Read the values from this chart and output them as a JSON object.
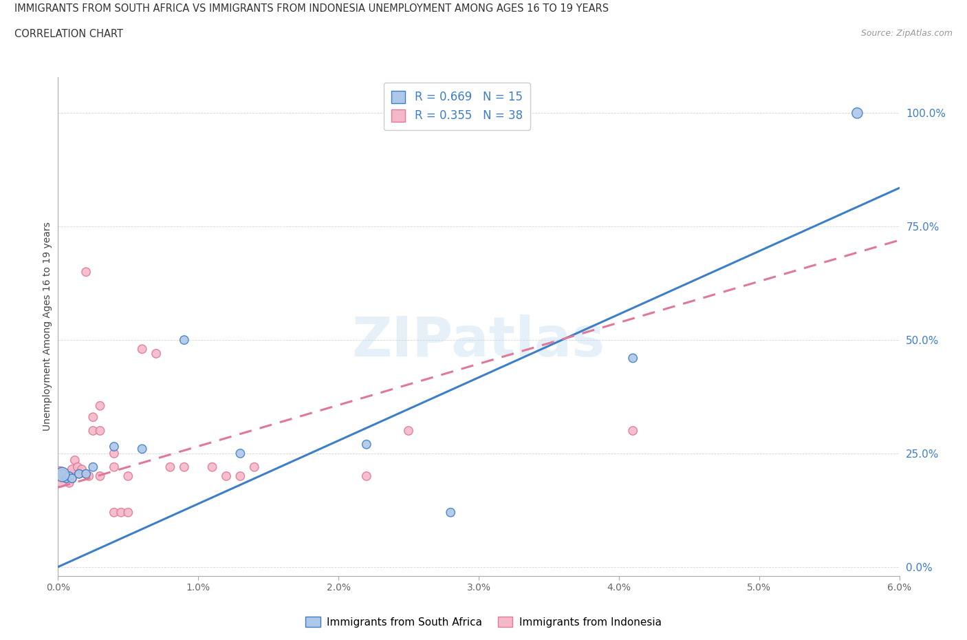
{
  "title_line1": "IMMIGRANTS FROM SOUTH AFRICA VS IMMIGRANTS FROM INDONESIA UNEMPLOYMENT AMONG AGES 16 TO 19 YEARS",
  "title_line2": "CORRELATION CHART",
  "source": "Source: ZipAtlas.com",
  "ylabel": "Unemployment Among Ages 16 to 19 years",
  "xlim": [
    0.0,
    0.06
  ],
  "ylim": [
    -0.02,
    1.08
  ],
  "xticks": [
    0.0,
    0.01,
    0.02,
    0.03,
    0.04,
    0.05,
    0.06
  ],
  "xticklabels": [
    "0.0%",
    "1.0%",
    "2.0%",
    "3.0%",
    "4.0%",
    "5.0%",
    "6.0%"
  ],
  "yticks": [
    0.0,
    0.25,
    0.5,
    0.75,
    1.0
  ],
  "yticklabels": [
    "0.0%",
    "25.0%",
    "50.0%",
    "75.0%",
    "100.0%"
  ],
  "legend_labels": [
    "Immigrants from South Africa",
    "Immigrants from Indonesia"
  ],
  "R_blue": 0.669,
  "N_blue": 15,
  "R_pink": 0.355,
  "N_pink": 38,
  "color_blue": "#adc8e8",
  "color_pink": "#f5b8c8",
  "color_line_blue": "#3d7ec8",
  "color_line_pink": "#e07898",
  "watermark": "ZIPatlas",
  "blue_line_x0": 0.0,
  "blue_line_y0": 0.0,
  "blue_line_x1": 0.06,
  "blue_line_y1": 0.835,
  "pink_line_x0": 0.0,
  "pink_line_y0": 0.175,
  "pink_line_x1": 0.06,
  "pink_line_y1": 0.72,
  "blue_points": [
    [
      0.0003,
      0.205
    ],
    [
      0.0006,
      0.195
    ],
    [
      0.0008,
      0.2
    ],
    [
      0.001,
      0.195
    ],
    [
      0.0015,
      0.205
    ],
    [
      0.002,
      0.205
    ],
    [
      0.0025,
      0.22
    ],
    [
      0.004,
      0.265
    ],
    [
      0.006,
      0.26
    ],
    [
      0.009,
      0.5
    ],
    [
      0.013,
      0.25
    ],
    [
      0.022,
      0.27
    ],
    [
      0.028,
      0.12
    ],
    [
      0.041,
      0.46
    ],
    [
      0.057,
      1.0
    ]
  ],
  "blue_sizes": [
    80,
    80,
    80,
    80,
    80,
    80,
    80,
    80,
    80,
    80,
    80,
    80,
    80,
    80,
    120
  ],
  "pink_points": [
    [
      0.0001,
      0.2
    ],
    [
      0.0002,
      0.21
    ],
    [
      0.0003,
      0.195
    ],
    [
      0.0005,
      0.2
    ],
    [
      0.0007,
      0.195
    ],
    [
      0.0008,
      0.185
    ],
    [
      0.0009,
      0.205
    ],
    [
      0.001,
      0.195
    ],
    [
      0.001,
      0.215
    ],
    [
      0.0012,
      0.235
    ],
    [
      0.0014,
      0.22
    ],
    [
      0.0015,
      0.205
    ],
    [
      0.0017,
      0.215
    ],
    [
      0.002,
      0.205
    ],
    [
      0.0022,
      0.2
    ],
    [
      0.0025,
      0.3
    ],
    [
      0.0025,
      0.33
    ],
    [
      0.003,
      0.355
    ],
    [
      0.003,
      0.3
    ],
    [
      0.003,
      0.2
    ],
    [
      0.004,
      0.22
    ],
    [
      0.004,
      0.25
    ],
    [
      0.004,
      0.12
    ],
    [
      0.0045,
      0.12
    ],
    [
      0.005,
      0.12
    ],
    [
      0.005,
      0.2
    ],
    [
      0.006,
      0.48
    ],
    [
      0.007,
      0.47
    ],
    [
      0.008,
      0.22
    ],
    [
      0.009,
      0.22
    ],
    [
      0.011,
      0.22
    ],
    [
      0.012,
      0.2
    ],
    [
      0.013,
      0.2
    ],
    [
      0.014,
      0.22
    ],
    [
      0.022,
      0.2
    ],
    [
      0.025,
      0.3
    ],
    [
      0.041,
      0.3
    ],
    [
      0.002,
      0.65
    ]
  ],
  "pink_sizes": [
    80,
    80,
    80,
    80,
    80,
    80,
    80,
    80,
    80,
    80,
    80,
    80,
    80,
    80,
    80,
    80,
    80,
    80,
    80,
    80,
    80,
    80,
    80,
    80,
    80,
    80,
    80,
    80,
    80,
    80,
    80,
    80,
    80,
    80,
    80,
    80,
    80,
    80
  ],
  "pink_large_point": [
    0.0001,
    0.2
  ],
  "pink_large_size": 420,
  "blue_large_point": [
    0.0003,
    0.205
  ],
  "blue_large_size": 220
}
